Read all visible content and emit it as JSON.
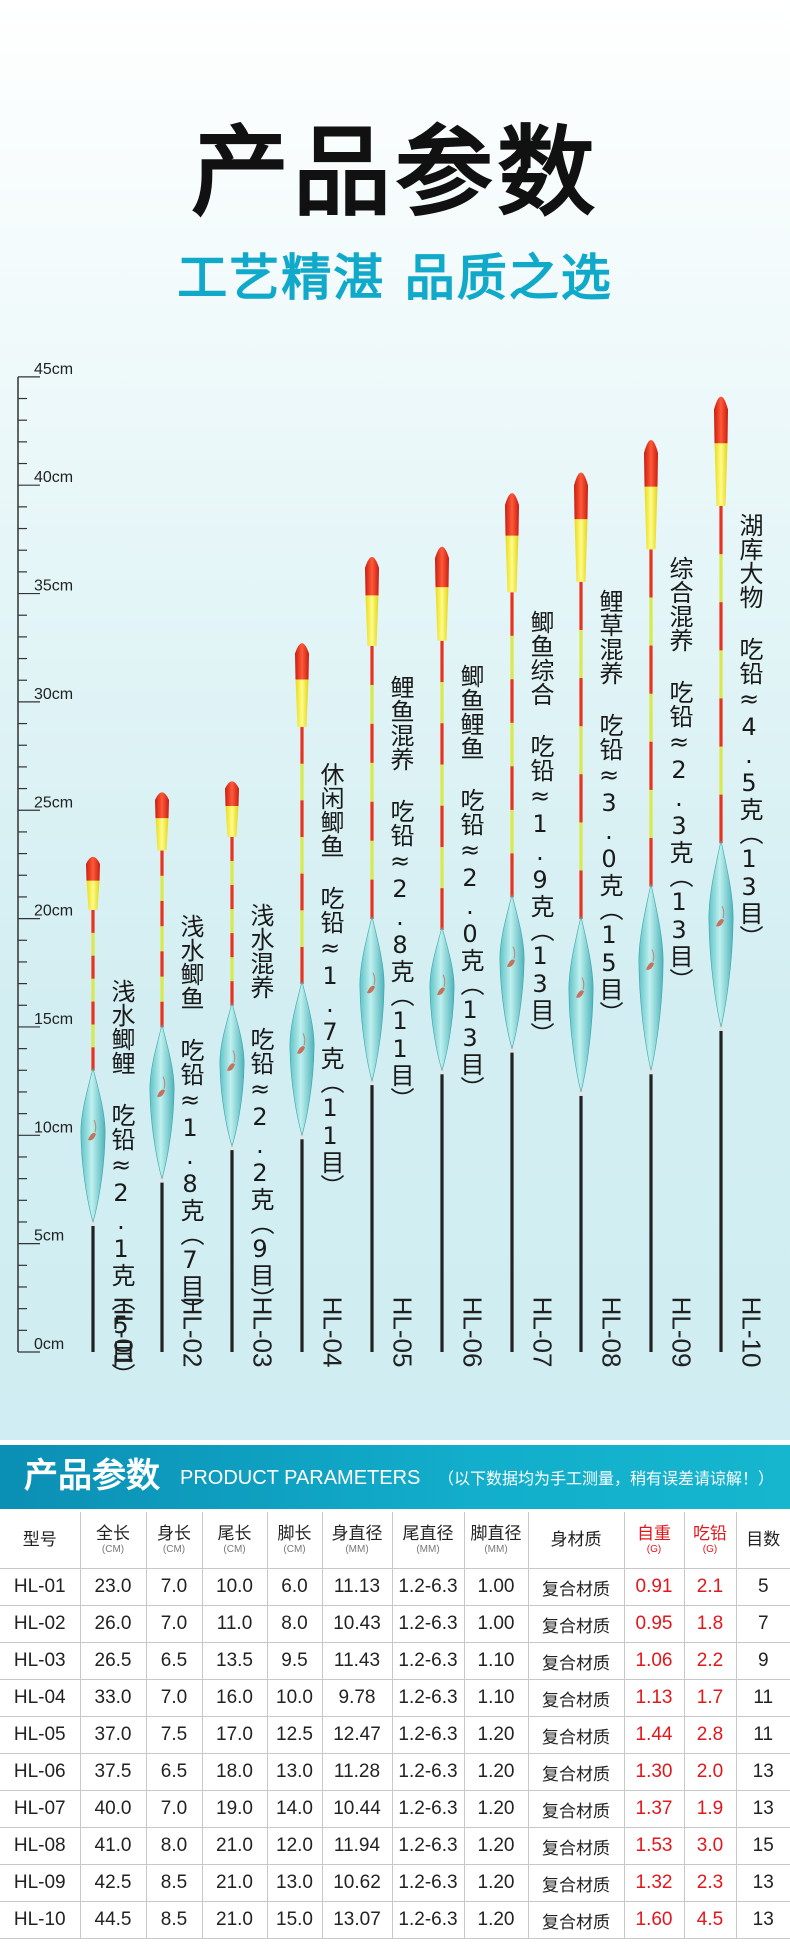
{
  "title": "产品参数",
  "subtitle": "工艺精湛 品质之选",
  "ruler": {
    "labels": [
      "45cm",
      "40cm",
      "35cm",
      "30cm",
      "25cm",
      "20cm",
      "15cm",
      "10cm",
      "5cm",
      "0cm"
    ],
    "max_cm": 45
  },
  "floats": [
    {
      "model": "HL-01",
      "label": "浅水鲫鲤 吃铅≈2.1克（5目）",
      "length_cm": 23.0,
      "body_cm": 7.0,
      "tail_cm": 10.0,
      "stem_cm": 6.0
    },
    {
      "model": "HL-02",
      "label": "浅水鲫鱼 吃铅≈1.8克（7目）",
      "length_cm": 26.0,
      "body_cm": 7.0,
      "tail_cm": 11.0,
      "stem_cm": 8.0
    },
    {
      "model": "HL-03",
      "label": "浅水混养 吃铅≈2.2克（9目）",
      "length_cm": 26.5,
      "body_cm": 6.5,
      "tail_cm": 13.5,
      "stem_cm": 9.5
    },
    {
      "model": "HL-04",
      "label": "休闲鲫鱼 吃铅≈1.7克（11目）",
      "length_cm": 33.0,
      "body_cm": 7.0,
      "tail_cm": 16.0,
      "stem_cm": 10.0
    },
    {
      "model": "HL-05",
      "label": "鲤鱼混养 吃铅≈2.8克（11目）",
      "length_cm": 37.0,
      "body_cm": 7.5,
      "tail_cm": 17.0,
      "stem_cm": 12.5
    },
    {
      "model": "HL-06",
      "label": "鲫鱼鲤鱼 吃铅≈2.0克（13目）",
      "length_cm": 37.5,
      "body_cm": 6.5,
      "tail_cm": 18.0,
      "stem_cm": 13.0
    },
    {
      "model": "HL-07",
      "label": "鲫鱼综合 吃铅≈1.9克（13目）",
      "length_cm": 40.0,
      "body_cm": 7.0,
      "tail_cm": 19.0,
      "stem_cm": 14.0
    },
    {
      "model": "HL-08",
      "label": "鲤草混养 吃铅≈3.0克（15目）",
      "length_cm": 41.0,
      "body_cm": 8.0,
      "tail_cm": 21.0,
      "stem_cm": 12.0
    },
    {
      "model": "HL-09",
      "label": "综合混养 吃铅≈2.3克（13目）",
      "length_cm": 42.5,
      "body_cm": 8.5,
      "tail_cm": 21.0,
      "stem_cm": 13.0
    },
    {
      "model": "HL-10",
      "label": "湖库大物 吃铅≈4.5克（13目）",
      "length_cm": 44.5,
      "body_cm": 8.5,
      "tail_cm": 21.0,
      "stem_cm": 15.0
    }
  ],
  "params": {
    "title": "产品参数",
    "title_en": "PRODUCT PARAMETERS",
    "note": "（以下数据均为手工测量，稍有误差请谅解！）",
    "headers": [
      {
        "label": "型号",
        "unit": ""
      },
      {
        "label": "全长",
        "unit": "(CM)"
      },
      {
        "label": "身长",
        "unit": "(CM)"
      },
      {
        "label": "尾长",
        "unit": "(CM)"
      },
      {
        "label": "脚长",
        "unit": "(CM)"
      },
      {
        "label": "身直径",
        "unit": "(MM)"
      },
      {
        "label": "尾直径",
        "unit": "(MM)"
      },
      {
        "label": "脚直径",
        "unit": "(MM)"
      },
      {
        "label": "身材质",
        "unit": ""
      },
      {
        "label": "自重",
        "unit": "(G)"
      },
      {
        "label": "吃铅",
        "unit": "(G)"
      },
      {
        "label": "目数",
        "unit": ""
      }
    ],
    "rows": [
      [
        "HL-01",
        "23.0",
        "7.0",
        "10.0",
        "6.0",
        "11.13",
        "1.2-6.3",
        "1.00",
        "复合材质",
        "0.91",
        "2.1",
        "5"
      ],
      [
        "HL-02",
        "26.0",
        "7.0",
        "11.0",
        "8.0",
        "10.43",
        "1.2-6.3",
        "1.00",
        "复合材质",
        "0.95",
        "1.8",
        "7"
      ],
      [
        "HL-03",
        "26.5",
        "6.5",
        "13.5",
        "9.5",
        "11.43",
        "1.2-6.3",
        "1.10",
        "复合材质",
        "1.06",
        "2.2",
        "9"
      ],
      [
        "HL-04",
        "33.0",
        "7.0",
        "16.0",
        "10.0",
        "9.78",
        "1.2-6.3",
        "1.10",
        "复合材质",
        "1.13",
        "1.7",
        "11"
      ],
      [
        "HL-05",
        "37.0",
        "7.5",
        "17.0",
        "12.5",
        "12.47",
        "1.2-6.3",
        "1.20",
        "复合材质",
        "1.44",
        "2.8",
        "11"
      ],
      [
        "HL-06",
        "37.5",
        "6.5",
        "18.0",
        "13.0",
        "11.28",
        "1.2-6.3",
        "1.20",
        "复合材质",
        "1.30",
        "2.0",
        "13"
      ],
      [
        "HL-07",
        "40.0",
        "7.0",
        "19.0",
        "14.0",
        "10.44",
        "1.2-6.3",
        "1.20",
        "复合材质",
        "1.37",
        "1.9",
        "13"
      ],
      [
        "HL-08",
        "41.0",
        "8.0",
        "21.0",
        "12.0",
        "11.94",
        "1.2-6.3",
        "1.20",
        "复合材质",
        "1.53",
        "3.0",
        "15"
      ],
      [
        "HL-09",
        "42.5",
        "8.5",
        "21.0",
        "13.0",
        "10.62",
        "1.2-6.3",
        "1.20",
        "复合材质",
        "1.32",
        "2.3",
        "13"
      ],
      [
        "HL-10",
        "44.5",
        "8.5",
        "21.0",
        "15.0",
        "13.07",
        "1.2-6.3",
        "1.20",
        "复合材质",
        "1.60",
        "4.5",
        "13"
      ]
    ]
  },
  "colors": {
    "accent": "#10a9c9",
    "tip_red": "#e8321e",
    "tip_yellow": "#f2ea2a",
    "body_teal": "#7fd3d6",
    "highlight_red": "#e4161b"
  }
}
